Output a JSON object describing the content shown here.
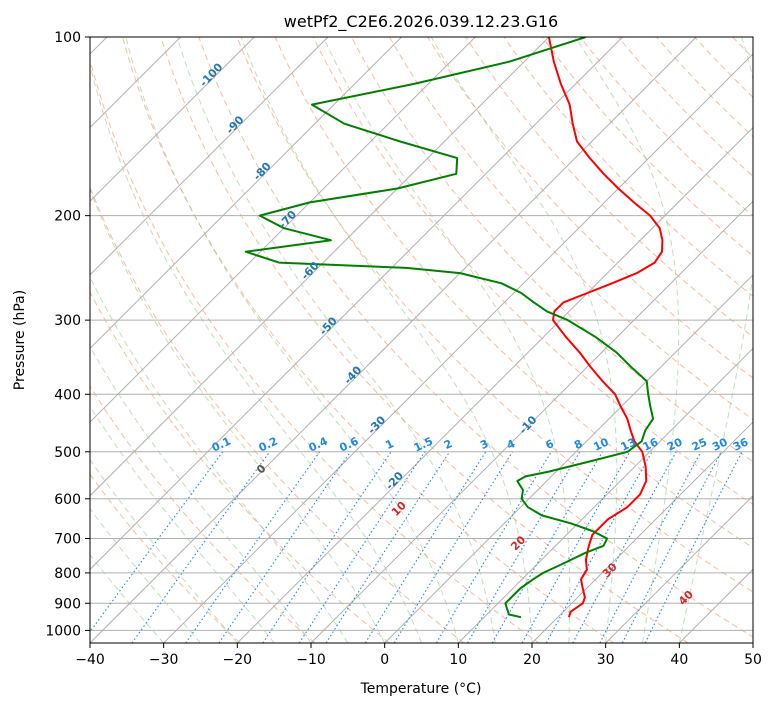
{
  "chart_data": {
    "type": "line",
    "title": "wetPf2_C2E6.2026.039.12.23.G16",
    "xlabel": "Temperature (°C)",
    "ylabel": "Pressure (hPa)",
    "xlim": [
      -40,
      50
    ],
    "ylim": [
      1050,
      100
    ],
    "y_scale": "log",
    "x_ticks": [
      -40,
      -30,
      -20,
      -10,
      0,
      10,
      20,
      30,
      40,
      50
    ],
    "x_tick_labels": [
      "−40",
      "−30",
      "−20",
      "−10",
      "0",
      "10",
      "20",
      "30",
      "40",
      "50"
    ],
    "y_ticks": [
      100,
      200,
      300,
      400,
      500,
      600,
      700,
      800,
      900,
      1000
    ],
    "y_tick_labels": [
      "100",
      "200",
      "300",
      "400",
      "500",
      "600",
      "700",
      "800",
      "900",
      "1000"
    ],
    "grid": true,
    "skew": 35,
    "series": [
      {
        "color": "#ff0000",
        "pressure": [
          950,
          930,
          900,
          880,
          850,
          820,
          790,
          760,
          720,
          690,
          650,
          620,
          590,
          560,
          530,
          500,
          480,
          460,
          440,
          420,
          400,
          380,
          360,
          340,
          320,
          300,
          290,
          280,
          270,
          260,
          250,
          240,
          230,
          220,
          210,
          200,
          190,
          180,
          170,
          160,
          150,
          140,
          130,
          120,
          110,
          100
        ],
        "values": [
          21.5,
          21,
          21.5,
          21,
          19.5,
          18,
          17.5,
          16,
          14.5,
          13.5,
          13.5,
          14.5,
          14.5,
          13.5,
          11.5,
          9,
          6.5,
          4.5,
          2.5,
          0,
          -2.5,
          -6,
          -9.5,
          -13,
          -17,
          -21,
          -22,
          -22,
          -20,
          -18,
          -16,
          -15,
          -15.5,
          -17,
          -19,
          -22,
          -26,
          -30,
          -34,
          -38,
          -42,
          -45,
          -48,
          -52,
          -56,
          -60
        ]
      },
      {
        "color": "#008000",
        "pressure": [
          950,
          940,
          920,
          900,
          880,
          850,
          820,
          800,
          770,
          740,
          720,
          700,
          680,
          660,
          640,
          620,
          600,
          580,
          570,
          560,
          550,
          540,
          520,
          500,
          480,
          460,
          440,
          420,
          400,
          380,
          360,
          340,
          320,
          300,
          290,
          280,
          270,
          260,
          250,
          245,
          240,
          230,
          220,
          210,
          200,
          190,
          180,
          170,
          160,
          150,
          140,
          130,
          120,
          110,
          100
        ],
        "values": [
          15,
          13,
          12,
          11,
          11,
          11,
          11.5,
          12,
          13.5,
          15,
          16.5,
          16,
          13,
          9,
          4,
          1,
          -1,
          -2,
          -3,
          -4,
          -3.5,
          -1,
          3,
          7,
          7.5,
          6.5,
          6,
          4,
          2,
          0,
          -4,
          -8,
          -13,
          -19,
          -23,
          -26,
          -29,
          -33,
          -40,
          -48,
          -66,
          -72,
          -62,
          -70,
          -75,
          -70,
          -60,
          -54,
          -56,
          -66,
          -76,
          -83,
          -72,
          -62,
          -55
        ]
      }
    ],
    "isotherm_labels": [
      "-100",
      "-90",
      "-80",
      "-70",
      "-60",
      "-50",
      "-40",
      "-30",
      "-20",
      "-10"
    ],
    "mixing_ratio_labels": [
      "0.1",
      "0.2",
      "0.4",
      "0.6",
      "1",
      "1.5",
      "2",
      "3",
      "4",
      "6",
      "8",
      "10",
      "13",
      "16",
      "20",
      "25",
      "30",
      "36"
    ],
    "moist_adiabat_labels": [
      "0",
      "10",
      "20",
      "30",
      "40"
    ]
  }
}
